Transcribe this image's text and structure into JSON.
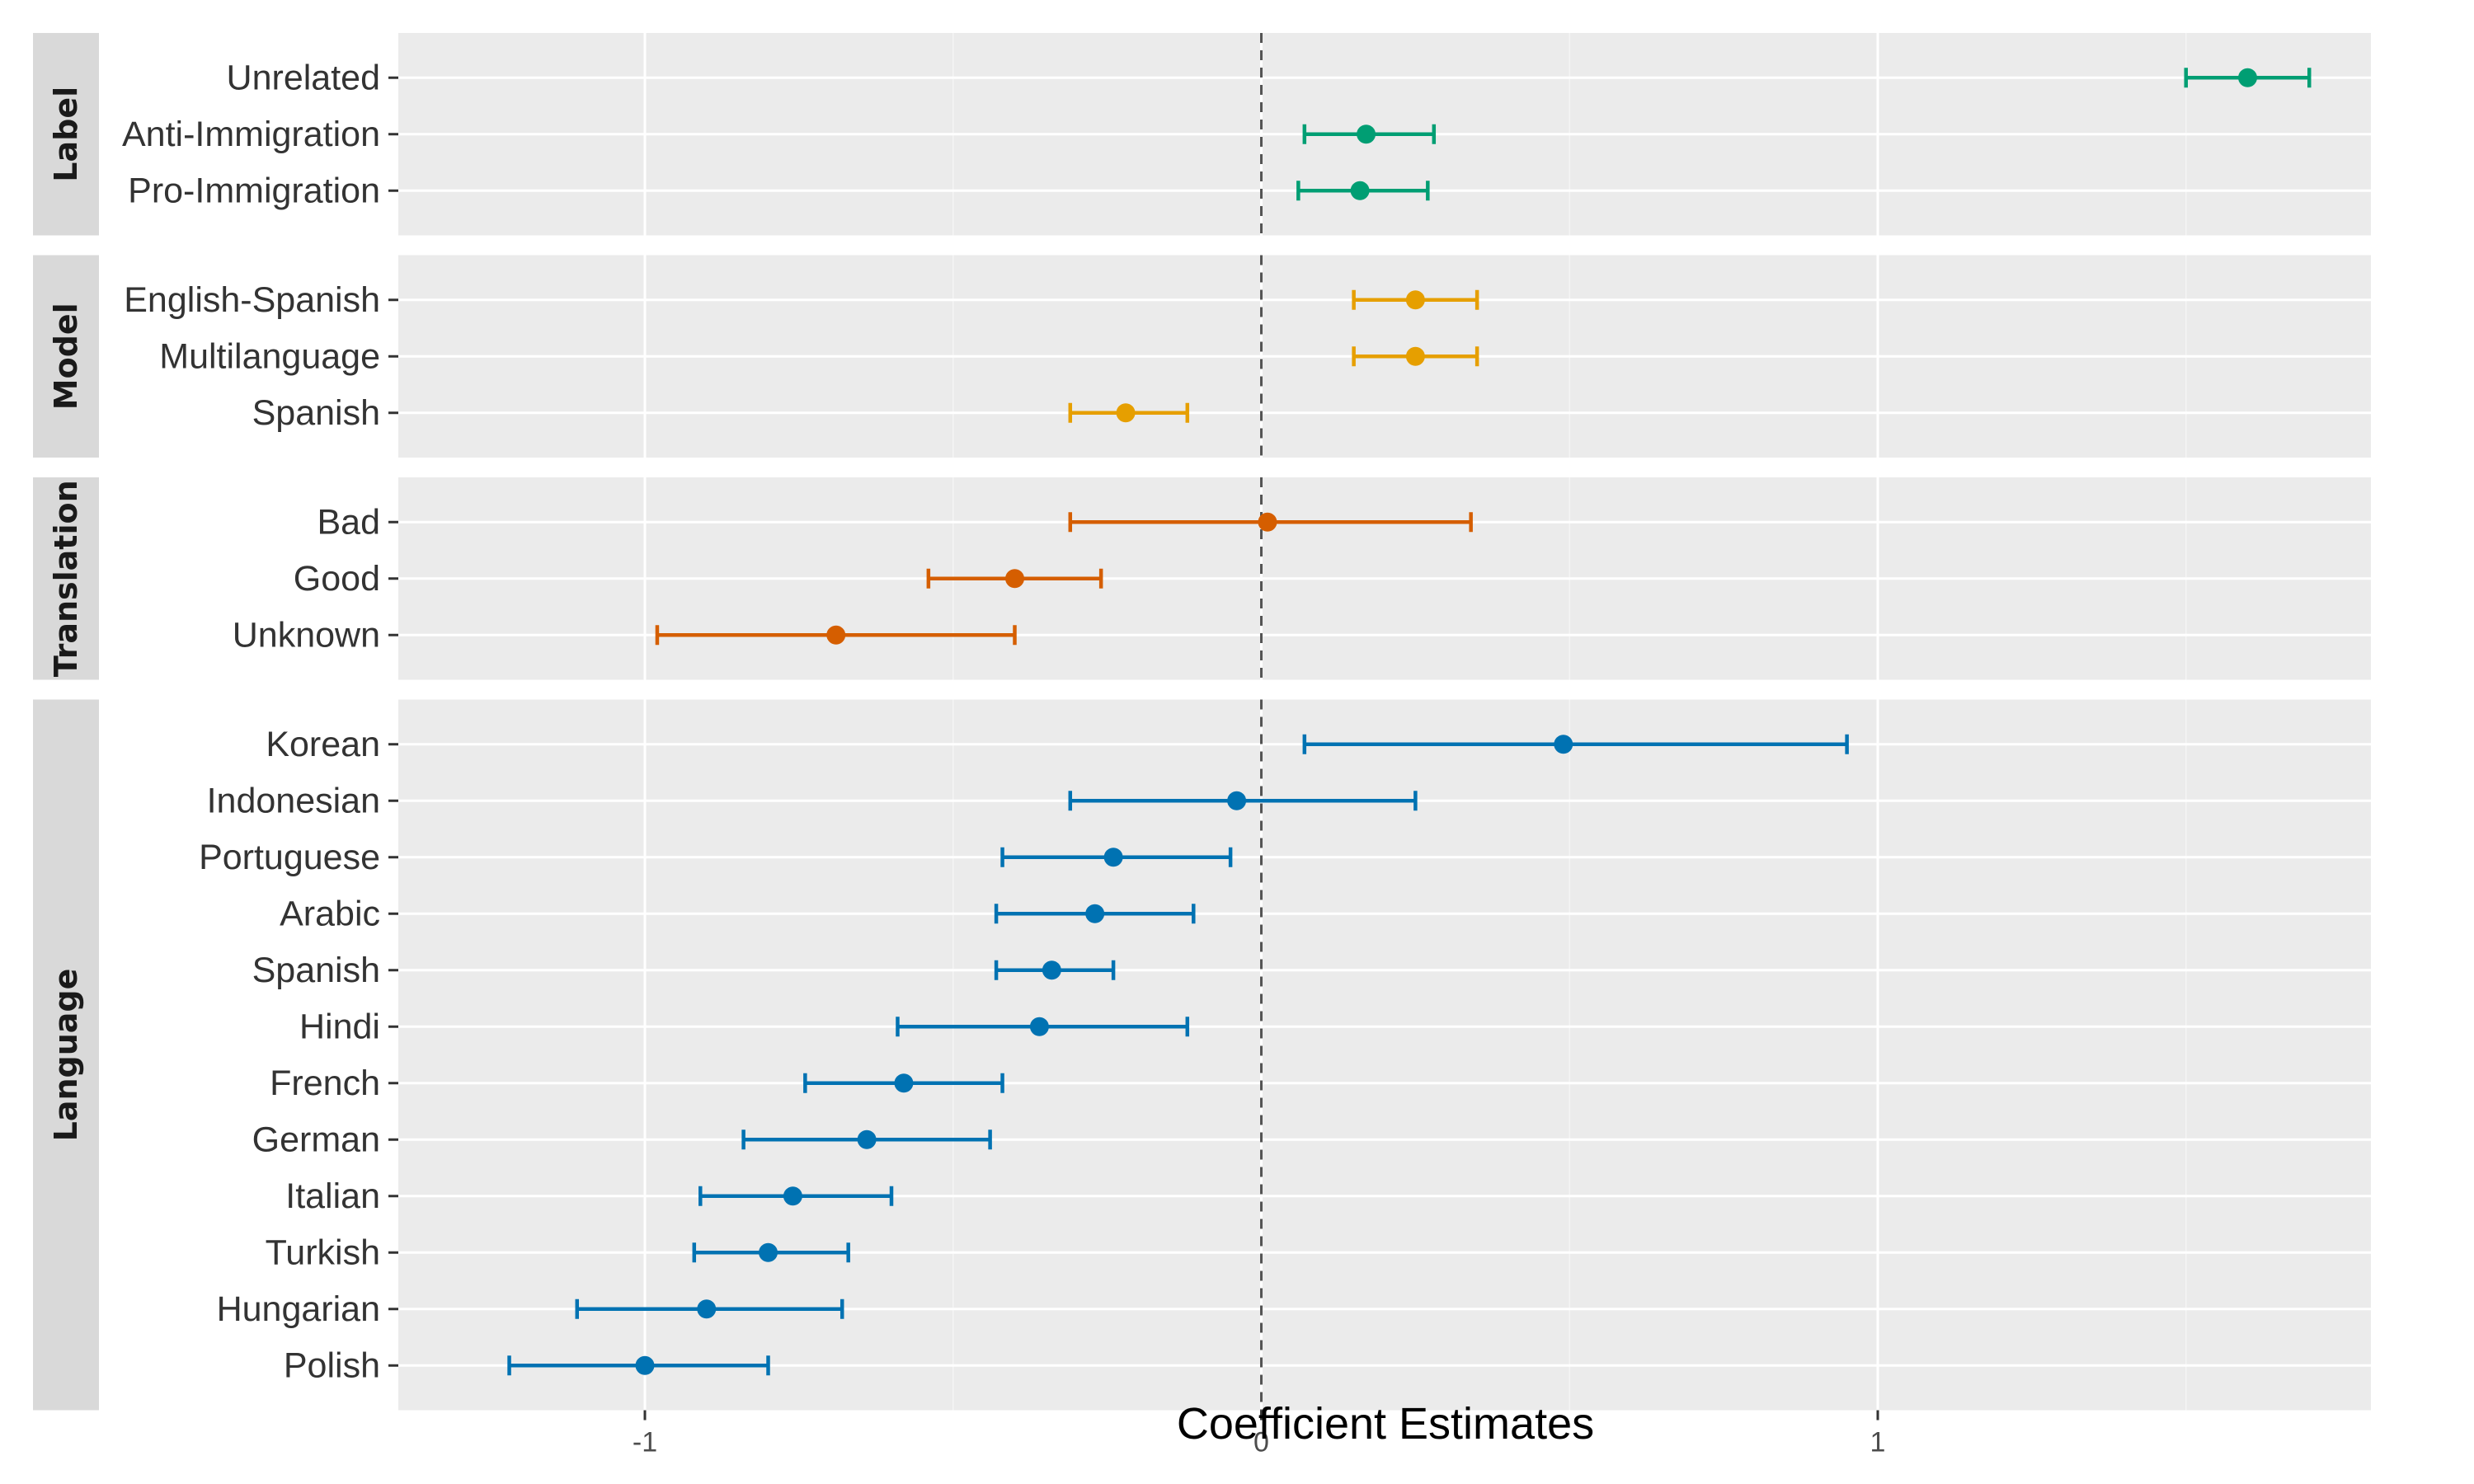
{
  "chart_data": {
    "type": "errorbar",
    "title": "",
    "xlabel": "Coefficient Estimates",
    "ylabel": "",
    "xlim": [
      -1.4,
      1.8
    ],
    "x_ticks": [
      {
        "value": -1,
        "label": "-1"
      },
      {
        "value": 0,
        "label": "0"
      },
      {
        "value": 1,
        "label": "1"
      }
    ],
    "reference_line": {
      "x": 0,
      "style": "dashed"
    },
    "grid": true,
    "facets": [
      {
        "name": "Label",
        "color": "#009E73",
        "items": [
          {
            "label": "Unrelated",
            "estimate": 1.6,
            "lower": 1.5,
            "upper": 1.7
          },
          {
            "label": "Anti-Immigration",
            "estimate": 0.17,
            "lower": 0.07,
            "upper": 0.28
          },
          {
            "label": "Pro-Immigration",
            "estimate": 0.16,
            "lower": 0.06,
            "upper": 0.27
          }
        ]
      },
      {
        "name": "Model",
        "color": "#E69F00",
        "items": [
          {
            "label": "English-Spanish",
            "estimate": 0.25,
            "lower": 0.15,
            "upper": 0.35
          },
          {
            "label": "Multilanguage",
            "estimate": 0.25,
            "lower": 0.15,
            "upper": 0.35
          },
          {
            "label": "Spanish",
            "estimate": -0.22,
            "lower": -0.31,
            "upper": -0.12
          }
        ]
      },
      {
        "name": "Translation",
        "color": "#D55E00",
        "items": [
          {
            "label": "Bad",
            "estimate": 0.01,
            "lower": -0.31,
            "upper": 0.34
          },
          {
            "label": "Good",
            "estimate": -0.4,
            "lower": -0.54,
            "upper": -0.26
          },
          {
            "label": "Unknown",
            "estimate": -0.69,
            "lower": -0.98,
            "upper": -0.4
          }
        ]
      },
      {
        "name": "Language",
        "color": "#0072B2",
        "items": [
          {
            "label": "Korean",
            "estimate": 0.49,
            "lower": 0.07,
            "upper": 0.95
          },
          {
            "label": "Indonesian",
            "estimate": -0.04,
            "lower": -0.31,
            "upper": 0.25
          },
          {
            "label": "Portuguese",
            "estimate": -0.24,
            "lower": -0.42,
            "upper": -0.05
          },
          {
            "label": "Arabic",
            "estimate": -0.27,
            "lower": -0.43,
            "upper": -0.11
          },
          {
            "label": "Spanish",
            "estimate": -0.34,
            "lower": -0.43,
            "upper": -0.24
          },
          {
            "label": "Hindi",
            "estimate": -0.36,
            "lower": -0.59,
            "upper": -0.12
          },
          {
            "label": "French",
            "estimate": -0.58,
            "lower": -0.74,
            "upper": -0.42
          },
          {
            "label": "German",
            "estimate": -0.64,
            "lower": -0.84,
            "upper": -0.44
          },
          {
            "label": "Italian",
            "estimate": -0.76,
            "lower": -0.91,
            "upper": -0.6
          },
          {
            "label": "Turkish",
            "estimate": -0.8,
            "lower": -0.92,
            "upper": -0.67
          },
          {
            "label": "Hungarian",
            "estimate": -0.9,
            "lower": -1.11,
            "upper": -0.68
          },
          {
            "label": "Polish",
            "estimate": -1.0,
            "lower": -1.22,
            "upper": -0.8
          }
        ]
      }
    ]
  }
}
